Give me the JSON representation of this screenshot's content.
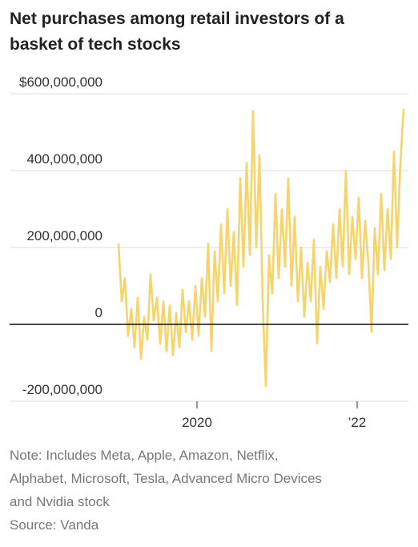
{
  "chart_data": {
    "type": "line",
    "title": "Net purchases among retail investors of a basket of tech stocks",
    "notes": [
      "Note: Includes Meta, Apple, Amazon, Netflix,",
      "Alphabet, Microsoft, Tesla, Advanced Micro Devices",
      "and Nvidia stock"
    ],
    "source": "Source: Vanda",
    "x": [
      2019.02,
      2019.06,
      2019.1,
      2019.14,
      2019.18,
      2019.22,
      2019.26,
      2019.3,
      2019.34,
      2019.38,
      2019.42,
      2019.46,
      2019.5,
      2019.54,
      2019.58,
      2019.62,
      2019.66,
      2019.7,
      2019.74,
      2019.78,
      2019.82,
      2019.86,
      2019.9,
      2019.94,
      2019.98,
      2020.02,
      2020.06,
      2020.1,
      2020.14,
      2020.18,
      2020.22,
      2020.26,
      2020.3,
      2020.34,
      2020.38,
      2020.42,
      2020.46,
      2020.5,
      2020.54,
      2020.58,
      2020.62,
      2020.66,
      2020.7,
      2020.74,
      2020.78,
      2020.82,
      2020.86,
      2020.9,
      2020.94,
      2020.98,
      2021.02,
      2021.06,
      2021.1,
      2021.14,
      2021.18,
      2021.22,
      2021.26,
      2021.3,
      2021.34,
      2021.38,
      2021.42,
      2021.46,
      2021.5,
      2021.54,
      2021.58,
      2021.62,
      2021.66,
      2021.7,
      2021.74,
      2021.78,
      2021.82,
      2021.86,
      2021.9,
      2021.94,
      2021.98,
      2022.02,
      2022.06,
      2022.1,
      2022.14,
      2022.18,
      2022.22,
      2022.26,
      2022.3,
      2022.34,
      2022.38,
      2022.42,
      2022.46,
      2022.5,
      2022.54,
      2022.58
    ],
    "series": [
      {
        "color": "#f6d46b",
        "values": [
          210000000.0,
          60000000.0,
          120000000.0,
          -30000000.0,
          40000000.0,
          -60000000.0,
          70000000.0,
          -90000000.0,
          20000000.0,
          -40000000.0,
          130000000.0,
          10000000.0,
          70000000.0,
          -50000000.0,
          60000000.0,
          -70000000.0,
          50000000.0,
          -80000000.0,
          30000000.0,
          -60000000.0,
          90000000.0,
          -20000000.0,
          60000000.0,
          -40000000.0,
          100000000.0,
          -30000000.0,
          120000000.0,
          20000000.0,
          210000000.0,
          -70000000.0,
          190000000.0,
          60000000.0,
          260000000.0,
          80000000.0,
          300000000.0,
          100000000.0,
          240000000.0,
          50000000.0,
          380000000.0,
          150000000.0,
          420000000.0,
          180000000.0,
          555000000.0,
          200000000.0,
          440000000.0,
          60000000.0,
          -160000000.0,
          180000000.0,
          80000000.0,
          340000000.0,
          120000000.0,
          300000000.0,
          150000000.0,
          380000000.0,
          100000000.0,
          280000000.0,
          60000000.0,
          200000000.0,
          20000000.0,
          160000000.0,
          60000000.0,
          220000000.0,
          -50000000.0,
          150000000.0,
          40000000.0,
          190000000.0,
          110000000.0,
          260000000.0,
          120000000.0,
          300000000.0,
          150000000.0,
          400000000.0,
          130000000.0,
          280000000.0,
          170000000.0,
          330000000.0,
          120000000.0,
          270000000.0,
          160000000.0,
          -20000000.0,
          250000000.0,
          130000000.0,
          340000000.0,
          140000000.0,
          300000000.0,
          170000000.0,
          450000000.0,
          200000000.0,
          420000000.0,
          560000000.0
        ]
      }
    ],
    "xlim": [
      2017.66,
      2022.64
    ],
    "xticks": [
      2020,
      {
        "value": 2022,
        "label": "’22"
      }
    ],
    "ylim": [
      -200000000,
      600000000
    ],
    "yticks": [
      {
        "value": 600000000,
        "label": "$600,000,000"
      },
      {
        "value": 400000000,
        "label": "400,000,000"
      },
      {
        "value": 200000000,
        "label": "200,000,000"
      },
      0,
      {
        "value": -200000000,
        "label": "-200,000,000"
      }
    ],
    "grid": true
  }
}
